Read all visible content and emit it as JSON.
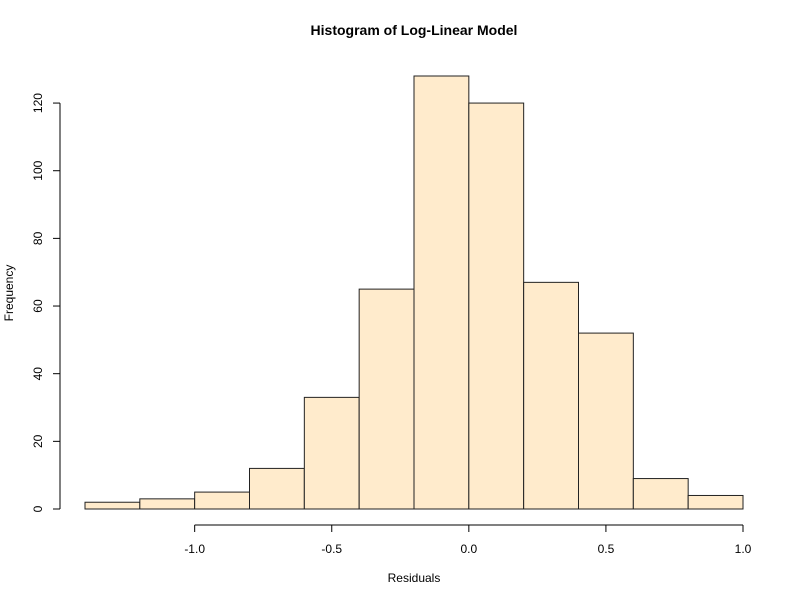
{
  "chart_data": {
    "type": "bar",
    "title": "Histogram of Log-Linear Model",
    "xlabel": "Residuals",
    "ylabel": "Frequency",
    "bin_edges": [
      -1.4,
      -1.2,
      -1.0,
      -0.8,
      -0.6,
      -0.4,
      -0.2,
      0.0,
      0.2,
      0.4,
      0.6,
      0.8,
      1.0
    ],
    "values": [
      2,
      3,
      5,
      12,
      33,
      65,
      128,
      120,
      67,
      52,
      9,
      4
    ],
    "xlim": [
      -1.4,
      1.0
    ],
    "ylim": [
      0,
      128
    ],
    "x_ticks": [
      -1.0,
      -0.5,
      0.0,
      0.5,
      1.0
    ],
    "x_tick_labels": [
      "-1.0",
      "-0.5",
      "0.0",
      "0.5",
      "1.0"
    ],
    "y_ticks": [
      0,
      20,
      40,
      60,
      80,
      100,
      120
    ],
    "y_tick_labels": [
      "0",
      "20",
      "40",
      "60",
      "80",
      "100",
      "120"
    ],
    "bar_color": "#ffebcc",
    "grid": false
  }
}
